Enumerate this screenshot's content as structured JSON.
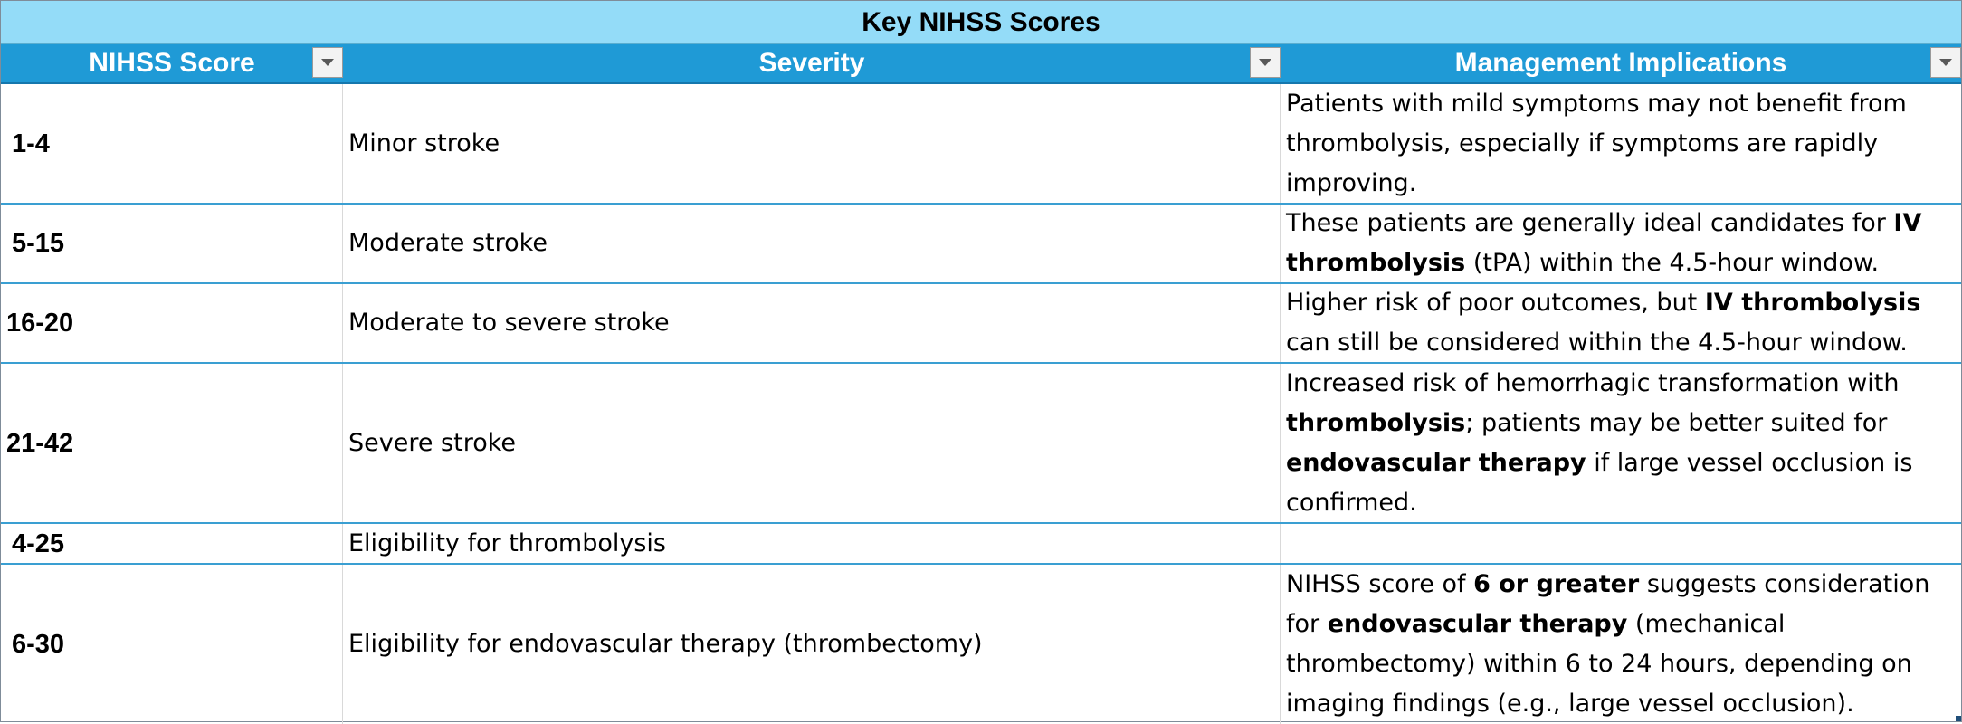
{
  "table": {
    "title": "Key NIHSS Scores",
    "headers": [
      "NIHSS Score",
      "Severity",
      "Management Implications"
    ],
    "rows": [
      {
        "score": "1-4",
        "severity": "Minor stroke",
        "implications": [
          {
            "t": "Patients with mild symptoms may not benefit from thrombolysis, especially if symptoms are rapidly improving.",
            "b": false
          }
        ]
      },
      {
        "score": "5-15",
        "severity": "Moderate stroke",
        "implications": [
          {
            "t": "These patients are generally ideal candidates for ",
            "b": false
          },
          {
            "t": "IV thrombolysis",
            "b": true
          },
          {
            "t": " (tPA) within the 4.5-hour window.",
            "b": false
          }
        ]
      },
      {
        "score": "16-20",
        "severity": "Moderate to severe stroke",
        "implications": [
          {
            "t": "Higher risk of poor outcomes, but ",
            "b": false
          },
          {
            "t": "IV thrombolysis",
            "b": true
          },
          {
            "t": " can still be considered within the 4.5-hour window.",
            "b": false
          }
        ]
      },
      {
        "score": "21-42",
        "severity": "Severe stroke",
        "implications": [
          {
            "t": "Increased risk of hemorrhagic transformation with ",
            "b": false
          },
          {
            "t": "thrombolysis",
            "b": true
          },
          {
            "t": "; patients may be better suited for ",
            "b": false
          },
          {
            "t": "endovascular therapy",
            "b": true
          },
          {
            "t": " if large vessel occlusion is confirmed.",
            "b": false
          }
        ]
      },
      {
        "score": "4-25",
        "severity": "Eligibility for thrombolysis",
        "implications": []
      },
      {
        "score": "6-30",
        "severity": "Eligibility for endovascular therapy (thrombectomy)",
        "implications": [
          {
            "t": "NIHSS score of ",
            "b": false
          },
          {
            "t": "6 or greater",
            "b": true
          },
          {
            "t": " suggests consideration for ",
            "b": false
          },
          {
            "t": "endovascular therapy",
            "b": true
          },
          {
            "t": " (mechanical thrombectomy) within 6 to 24 hours, depending on imaging findings (e.g., large vessel occlusion).",
            "b": false
          }
        ]
      }
    ]
  },
  "icons": {
    "filter": "filter-dropdown-icon"
  },
  "colors": {
    "title_bg": "#94dcf8",
    "header_bg": "#1f9ad6",
    "row_border": "#3a9fd2"
  }
}
